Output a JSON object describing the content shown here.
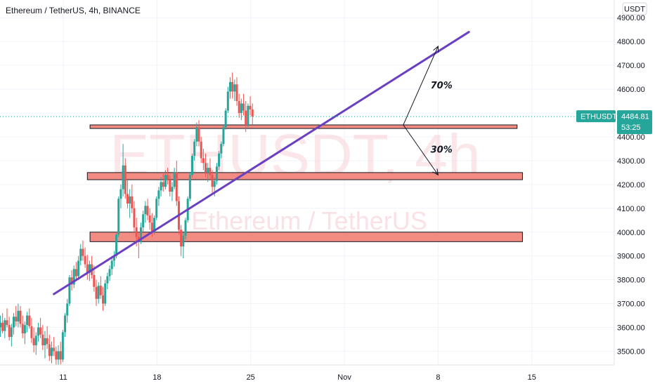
{
  "header": {
    "title": "Ethereum / TetherUS, 4h, BINANCE"
  },
  "watermark": {
    "symbol": "ETHUSDT, 4h",
    "name": "Ethereum / TetherUS"
  },
  "price_axis": {
    "currency": "USDT"
  },
  "price_tag": {
    "symbol": "ETHUSDT",
    "price": "4484.81",
    "countdown": "53:25"
  },
  "colors": {
    "up": "#26a69a",
    "down": "#ef5350",
    "trendline": "#6a3fc1",
    "zone_fill": "#f28b82",
    "tag": "#26a69a"
  },
  "chart_data": {
    "type": "candlestick",
    "title": "Ethereum / TetherUS, 4h, BINANCE",
    "ylim": [
      3420,
      4980
    ],
    "yticks": [
      3500,
      3600,
      3700,
      3800,
      3900,
      4000,
      4100,
      4200,
      4300,
      4400,
      4500,
      4600,
      4700,
      4800,
      4900
    ],
    "ytick_labels": [
      "3500.00",
      "3600.00",
      "3700.00",
      "3800.00",
      "3900.00",
      "4000.00",
      "4100.00",
      "4200.00",
      "4300.00",
      "4400.00",
      "4500.00",
      "4600.00",
      "4700.00",
      "4800.00",
      "4900.00"
    ],
    "xticks": [
      {
        "label": "11",
        "day": 0
      },
      {
        "label": "18",
        "day": 7
      },
      {
        "label": "25",
        "day": 14
      },
      {
        "label": "Nov",
        "day": 21
      },
      {
        "label": "8",
        "day": 28
      },
      {
        "label": "15",
        "day": 35
      }
    ],
    "candle_timeframe": "4h",
    "candles_start_day": -4.7,
    "candles": [
      [
        3600,
        3650,
        3560,
        3620
      ],
      [
        3620,
        3660,
        3575,
        3585
      ],
      [
        3585,
        3640,
        3555,
        3630
      ],
      [
        3630,
        3680,
        3600,
        3610
      ],
      [
        3610,
        3645,
        3545,
        3560
      ],
      [
        3560,
        3615,
        3520,
        3600
      ],
      [
        3600,
        3660,
        3570,
        3645
      ],
      [
        3645,
        3690,
        3605,
        3625
      ],
      [
        3625,
        3700,
        3600,
        3670
      ],
      [
        3670,
        3690,
        3600,
        3615
      ],
      [
        3615,
        3650,
        3555,
        3575
      ],
      [
        3575,
        3625,
        3530,
        3610
      ],
      [
        3610,
        3665,
        3580,
        3650
      ],
      [
        3650,
        3680,
        3595,
        3605
      ],
      [
        3605,
        3640,
        3535,
        3555
      ],
      [
        3555,
        3600,
        3495,
        3525
      ],
      [
        3525,
        3580,
        3485,
        3565
      ],
      [
        3565,
        3620,
        3540,
        3600
      ],
      [
        3600,
        3640,
        3555,
        3570
      ],
      [
        3570,
        3610,
        3505,
        3525
      ],
      [
        3525,
        3585,
        3470,
        3555
      ],
      [
        3555,
        3605,
        3510,
        3530
      ],
      [
        3530,
        3570,
        3460,
        3480
      ],
      [
        3480,
        3540,
        3450,
        3515
      ],
      [
        3515,
        3560,
        3480,
        3500
      ],
      [
        3500,
        3520,
        3440,
        3465
      ],
      [
        3465,
        3525,
        3440,
        3500
      ],
      [
        3500,
        3540,
        3445,
        3465
      ],
      [
        3465,
        3590,
        3455,
        3580
      ],
      [
        3580,
        3660,
        3560,
        3650
      ],
      [
        3650,
        3720,
        3620,
        3700
      ],
      [
        3700,
        3820,
        3690,
        3810
      ],
      [
        3810,
        3840,
        3755,
        3780
      ],
      [
        3780,
        3860,
        3765,
        3845
      ],
      [
        3845,
        3875,
        3800,
        3815
      ],
      [
        3815,
        3900,
        3800,
        3880
      ],
      [
        3880,
        3950,
        3860,
        3930
      ],
      [
        3930,
        3965,
        3880,
        3900
      ],
      [
        3900,
        3935,
        3850,
        3865
      ],
      [
        3865,
        3905,
        3800,
        3830
      ],
      [
        3830,
        3880,
        3795,
        3865
      ],
      [
        3865,
        3900,
        3805,
        3820
      ],
      [
        3820,
        3860,
        3750,
        3770
      ],
      [
        3770,
        3800,
        3690,
        3720
      ],
      [
        3720,
        3790,
        3700,
        3775
      ],
      [
        3775,
        3815,
        3720,
        3735
      ],
      [
        3735,
        3770,
        3670,
        3700
      ],
      [
        3700,
        3800,
        3690,
        3785
      ],
      [
        3785,
        3830,
        3760,
        3815
      ],
      [
        3815,
        3860,
        3795,
        3845
      ],
      [
        3845,
        3900,
        3820,
        3880
      ],
      [
        3880,
        3920,
        3855,
        3900
      ],
      [
        3900,
        4000,
        3890,
        3990
      ],
      [
        3990,
        4150,
        3980,
        4140
      ],
      [
        4140,
        4200,
        4100,
        4180
      ],
      [
        4180,
        4370,
        4150,
        4280
      ],
      [
        4280,
        4310,
        4140,
        4160
      ],
      [
        4160,
        4220,
        4100,
        4120
      ],
      [
        4120,
        4180,
        4060,
        4150
      ],
      [
        4150,
        4200,
        4080,
        4100
      ],
      [
        4100,
        4130,
        4000,
        4020
      ],
      [
        4020,
        4060,
        3940,
        3980
      ],
      [
        3980,
        4000,
        3890,
        3960
      ],
      [
        3960,
        4040,
        3950,
        4020
      ],
      [
        4020,
        4090,
        4000,
        4075
      ],
      [
        4075,
        4130,
        4040,
        4110
      ],
      [
        4110,
        4140,
        4050,
        4070
      ],
      [
        4070,
        4100,
        4010,
        4040
      ],
      [
        4040,
        4080,
        3980,
        4000
      ],
      [
        4000,
        4070,
        3990,
        4060
      ],
      [
        4060,
        4150,
        4050,
        4140
      ],
      [
        4140,
        4190,
        4110,
        4175
      ],
      [
        4175,
        4230,
        4150,
        4210
      ],
      [
        4210,
        4250,
        4170,
        4190
      ],
      [
        4190,
        4260,
        4180,
        4240
      ],
      [
        4240,
        4270,
        4200,
        4220
      ],
      [
        4220,
        4240,
        4150,
        4170
      ],
      [
        4170,
        4210,
        4130,
        4190
      ],
      [
        4190,
        4270,
        4180,
        4250
      ],
      [
        4250,
        4300,
        4110,
        4130
      ],
      [
        4130,
        4150,
        3990,
        4010
      ],
      [
        4010,
        4030,
        3900,
        3940
      ],
      [
        3940,
        4000,
        3890,
        3985
      ],
      [
        3985,
        4060,
        3970,
        4050
      ],
      [
        4050,
        4150,
        4040,
        4140
      ],
      [
        4140,
        4250,
        4130,
        4240
      ],
      [
        4240,
        4330,
        4230,
        4320
      ],
      [
        4320,
        4390,
        4300,
        4380
      ],
      [
        4380,
        4460,
        4360,
        4440
      ],
      [
        4440,
        4470,
        4360,
        4380
      ],
      [
        4380,
        4400,
        4290,
        4310
      ],
      [
        4310,
        4350,
        4260,
        4290
      ],
      [
        4290,
        4330,
        4230,
        4250
      ],
      [
        4250,
        4290,
        4210,
        4270
      ],
      [
        4270,
        4310,
        4220,
        4240
      ],
      [
        4240,
        4260,
        4160,
        4190
      ],
      [
        4190,
        4230,
        4150,
        4215
      ],
      [
        4215,
        4290,
        4200,
        4275
      ],
      [
        4275,
        4340,
        4260,
        4330
      ],
      [
        4330,
        4380,
        4310,
        4370
      ],
      [
        4370,
        4450,
        4360,
        4440
      ],
      [
        4440,
        4520,
        4430,
        4510
      ],
      [
        4510,
        4610,
        4500,
        4590
      ],
      [
        4590,
        4650,
        4560,
        4630
      ],
      [
        4630,
        4670,
        4560,
        4590
      ],
      [
        4590,
        4640,
        4550,
        4620
      ],
      [
        4620,
        4650,
        4530,
        4550
      ],
      [
        4550,
        4580,
        4480,
        4500
      ],
      [
        4500,
        4560,
        4470,
        4540
      ],
      [
        4540,
        4580,
        4490,
        4510
      ],
      [
        4510,
        4550,
        4420,
        4450
      ],
      [
        4450,
        4540,
        4440,
        4530
      ],
      [
        4530,
        4570,
        4490,
        4515
      ],
      [
        4515,
        4540,
        4450,
        4485
      ]
    ],
    "current_price": 4484.81,
    "horizontal_zones": [
      {
        "low": 4435,
        "high": 4450,
        "from_day": 2.0,
        "to_day": 33.9
      },
      {
        "low": 4220,
        "high": 4250,
        "from_day": 1.8,
        "to_day": 34.3
      },
      {
        "low": 3960,
        "high": 4000,
        "from_day": 2.0,
        "to_day": 34.3
      }
    ],
    "trendline": {
      "from": {
        "day": -0.7,
        "price": 3740
      },
      "to": {
        "day": 30.3,
        "price": 4840
      }
    },
    "projections": [
      {
        "label": "70%",
        "from": {
          "day": 25.4,
          "price": 4450
        },
        "to": {
          "day": 28.0,
          "price": 4780
        }
      },
      {
        "label": "30%",
        "from": {
          "day": 25.4,
          "price": 4450
        },
        "to": {
          "day": 28.0,
          "price": 4240
        }
      }
    ]
  }
}
